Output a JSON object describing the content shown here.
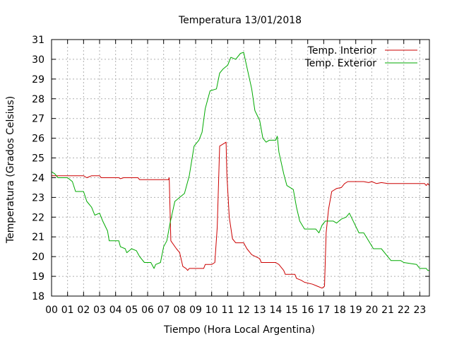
{
  "chart_data": {
    "type": "line",
    "title": "Temperatura 13/01/2018",
    "xlabel": "Tiempo (Hora Local Argentina)",
    "ylabel": "Temperatura (Grados Celsius)",
    "xlim": [
      0,
      23.6
    ],
    "ylim": [
      18,
      31
    ],
    "x_ticks": [
      "00",
      "01",
      "02",
      "03",
      "04",
      "05",
      "06",
      "07",
      "08",
      "09",
      "10",
      "11",
      "12",
      "13",
      "14",
      "15",
      "16",
      "17",
      "18",
      "19",
      "20",
      "21",
      "22",
      "23"
    ],
    "y_ticks": [
      "18",
      "19",
      "20",
      "21",
      "22",
      "23",
      "24",
      "25",
      "26",
      "27",
      "28",
      "29",
      "30",
      "31"
    ],
    "grid": true,
    "legend_position": "top-right",
    "series": [
      {
        "name": "Temp. Interior",
        "color": "#cc0000",
        "points": [
          [
            0,
            24.1
          ],
          [
            1.3,
            24.1
          ],
          [
            2.0,
            24.1
          ],
          [
            2.2,
            24.0
          ],
          [
            2.5,
            24.1
          ],
          [
            3.0,
            24.1
          ],
          [
            3.1,
            24.0
          ],
          [
            4.2,
            24.0
          ],
          [
            4.3,
            23.95
          ],
          [
            4.5,
            24.0
          ],
          [
            5.0,
            24.0
          ],
          [
            5.4,
            24.0
          ],
          [
            5.5,
            23.9
          ],
          [
            7.3,
            23.9
          ],
          [
            7.35,
            24.0
          ],
          [
            7.45,
            20.8
          ],
          [
            7.8,
            20.4
          ],
          [
            8.0,
            20.2
          ],
          [
            8.2,
            19.5
          ],
          [
            8.4,
            19.4
          ],
          [
            8.5,
            19.3
          ],
          [
            8.6,
            19.4
          ],
          [
            9.5,
            19.4
          ],
          [
            9.6,
            19.6
          ],
          [
            10.0,
            19.6
          ],
          [
            10.2,
            19.7
          ],
          [
            10.35,
            21.5
          ],
          [
            10.5,
            25.6
          ],
          [
            10.9,
            25.8
          ],
          [
            10.95,
            24.2
          ],
          [
            11.1,
            22.0
          ],
          [
            11.3,
            20.9
          ],
          [
            11.5,
            20.7
          ],
          [
            12.0,
            20.7
          ],
          [
            12.2,
            20.4
          ],
          [
            12.5,
            20.1
          ],
          [
            13.0,
            19.9
          ],
          [
            13.1,
            19.7
          ],
          [
            14.0,
            19.7
          ],
          [
            14.2,
            19.6
          ],
          [
            14.5,
            19.3
          ],
          [
            14.6,
            19.1
          ],
          [
            15.2,
            19.1
          ],
          [
            15.3,
            18.9
          ],
          [
            15.6,
            18.8
          ],
          [
            15.8,
            18.7
          ],
          [
            16.3,
            18.6
          ],
          [
            16.6,
            18.5
          ],
          [
            16.9,
            18.4
          ],
          [
            17.05,
            18.5
          ],
          [
            17.15,
            21.2
          ],
          [
            17.3,
            22.4
          ],
          [
            17.5,
            23.3
          ],
          [
            17.8,
            23.45
          ],
          [
            18.1,
            23.5
          ],
          [
            18.3,
            23.7
          ],
          [
            18.5,
            23.8
          ],
          [
            19.5,
            23.8
          ],
          [
            19.8,
            23.75
          ],
          [
            20.0,
            23.8
          ],
          [
            20.3,
            23.7
          ],
          [
            20.6,
            23.75
          ],
          [
            21.0,
            23.7
          ],
          [
            23.3,
            23.7
          ],
          [
            23.4,
            23.6
          ],
          [
            23.5,
            23.7
          ],
          [
            23.6,
            23.6
          ]
        ]
      },
      {
        "name": "Temp. Exterior",
        "color": "#00aa00",
        "points": [
          [
            0,
            24.3
          ],
          [
            0.2,
            24.2
          ],
          [
            0.4,
            24.0
          ],
          [
            1.0,
            24.0
          ],
          [
            1.3,
            23.8
          ],
          [
            1.5,
            23.3
          ],
          [
            2.0,
            23.3
          ],
          [
            2.2,
            22.8
          ],
          [
            2.5,
            22.5
          ],
          [
            2.7,
            22.1
          ],
          [
            3.0,
            22.2
          ],
          [
            3.2,
            21.8
          ],
          [
            3.5,
            21.3
          ],
          [
            3.6,
            20.8
          ],
          [
            4.2,
            20.8
          ],
          [
            4.3,
            20.5
          ],
          [
            4.6,
            20.4
          ],
          [
            4.7,
            20.2
          ],
          [
            5.0,
            20.4
          ],
          [
            5.3,
            20.3
          ],
          [
            5.5,
            20.0
          ],
          [
            5.8,
            19.7
          ],
          [
            6.2,
            19.7
          ],
          [
            6.4,
            19.4
          ],
          [
            6.5,
            19.6
          ],
          [
            6.8,
            19.7
          ],
          [
            7.0,
            20.5
          ],
          [
            7.2,
            20.8
          ],
          [
            7.4,
            21.7
          ],
          [
            7.7,
            22.8
          ],
          [
            8.0,
            23.0
          ],
          [
            8.3,
            23.2
          ],
          [
            8.6,
            24.1
          ],
          [
            8.9,
            25.6
          ],
          [
            9.2,
            25.9
          ],
          [
            9.4,
            26.3
          ],
          [
            9.6,
            27.5
          ],
          [
            9.9,
            28.4
          ],
          [
            10.3,
            28.5
          ],
          [
            10.5,
            29.3
          ],
          [
            10.7,
            29.5
          ],
          [
            11.0,
            29.7
          ],
          [
            11.2,
            30.1
          ],
          [
            11.5,
            30.0
          ],
          [
            11.8,
            30.3
          ],
          [
            12.0,
            30.35
          ],
          [
            12.2,
            29.6
          ],
          [
            12.5,
            28.5
          ],
          [
            12.7,
            27.4
          ],
          [
            13.0,
            26.9
          ],
          [
            13.2,
            26.0
          ],
          [
            13.4,
            25.8
          ],
          [
            13.6,
            25.9
          ],
          [
            14.0,
            25.9
          ],
          [
            14.1,
            26.1
          ],
          [
            14.2,
            25.3
          ],
          [
            14.5,
            24.2
          ],
          [
            14.7,
            23.6
          ],
          [
            15.1,
            23.4
          ],
          [
            15.3,
            22.5
          ],
          [
            15.5,
            21.8
          ],
          [
            15.8,
            21.4
          ],
          [
            16.5,
            21.4
          ],
          [
            16.7,
            21.2
          ],
          [
            16.9,
            21.6
          ],
          [
            17.1,
            21.8
          ],
          [
            17.6,
            21.8
          ],
          [
            17.8,
            21.7
          ],
          [
            18.1,
            21.9
          ],
          [
            18.4,
            22.0
          ],
          [
            18.6,
            22.2
          ],
          [
            18.9,
            21.7
          ],
          [
            19.2,
            21.2
          ],
          [
            19.5,
            21.2
          ],
          [
            19.8,
            20.8
          ],
          [
            20.1,
            20.4
          ],
          [
            20.6,
            20.4
          ],
          [
            20.9,
            20.1
          ],
          [
            21.2,
            19.8
          ],
          [
            21.8,
            19.8
          ],
          [
            22.0,
            19.7
          ],
          [
            22.8,
            19.6
          ],
          [
            23.0,
            19.4
          ],
          [
            23.4,
            19.4
          ],
          [
            23.5,
            19.3
          ],
          [
            23.6,
            19.3
          ]
        ]
      }
    ]
  }
}
